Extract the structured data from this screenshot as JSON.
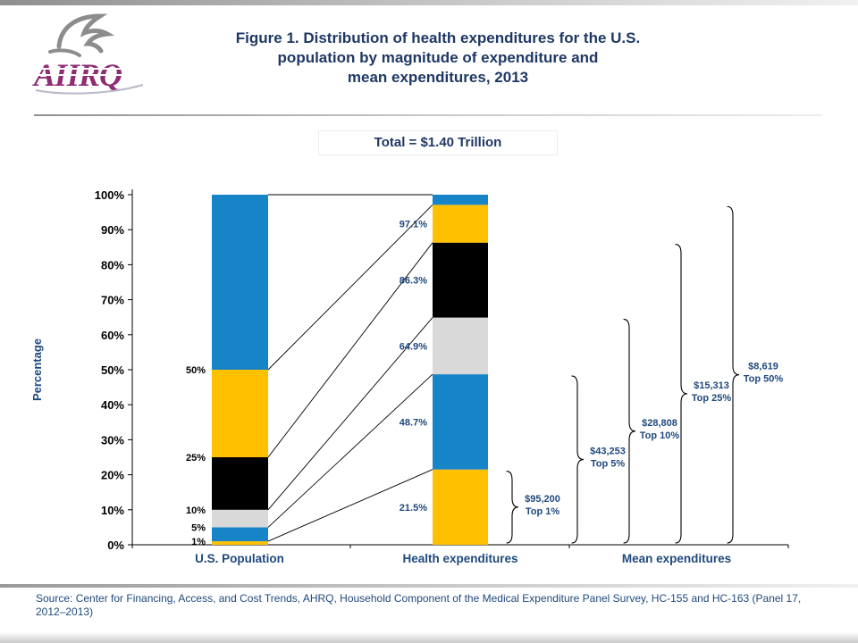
{
  "header": {
    "logo_text": "AHRQ",
    "title_lines": [
      "Figure 1. Distribution of health expenditures for the U.S.",
      "population by magnitude of expenditure and",
      "mean expenditures, 2013"
    ],
    "total_label": "Total = $1.40 Trillion"
  },
  "footer": {
    "source": "Source: Center for Financing, Access, and Cost Trends, AHRQ, Household Component of the Medical Expenditure Panel Survey, HC-155 and HC-163 (Panel 17, 2012–2013)"
  },
  "colors": {
    "navy_title": "#1F3864",
    "navy_label": "#1F497D",
    "logo_purple": "#8E2C74",
    "logo_gray": "#8c8c8c"
  },
  "chart_data": {
    "type": "bar",
    "subtype": "stacked-100pct-distribution-with-mean-brackets",
    "title": "Distribution of health expenditures for the U.S. population by magnitude of expenditure and mean expenditures, 2013",
    "total": "Total = $1.40 Trillion",
    "ylabel": "Percentage",
    "ylim": [
      0,
      100
    ],
    "grid": false,
    "y_ticks": [
      "0%",
      "10%",
      "20%",
      "30%",
      "40%",
      "50%",
      "60%",
      "70%",
      "80%",
      "90%",
      "100%"
    ],
    "x_categories": [
      "U.S. Population",
      "Health expenditures",
      "Mean expenditures"
    ],
    "colors": {
      "gold": "#FFC000",
      "blue": "#1784C8",
      "gray": "#D9D9D9",
      "black": "#000000"
    },
    "population_segments": [
      {
        "from": 0,
        "to": 1,
        "color": "gold"
      },
      {
        "from": 1,
        "to": 5,
        "color": "blue"
      },
      {
        "from": 5,
        "to": 10,
        "color": "gray"
      },
      {
        "from": 10,
        "to": 25,
        "color": "black"
      },
      {
        "from": 25,
        "to": 50,
        "color": "gold"
      },
      {
        "from": 50,
        "to": 100,
        "color": "blue"
      }
    ],
    "population_labels": [
      {
        "text": "50%",
        "at": 50
      },
      {
        "text": "25%",
        "at": 25
      },
      {
        "text": "10%",
        "at": 10
      },
      {
        "text": "5%",
        "at": 5
      },
      {
        "text": "1%",
        "at": 1
      }
    ],
    "expenditure_segments": [
      {
        "from": 0,
        "to": 21.5,
        "color": "gold",
        "label": "21.5%"
      },
      {
        "from": 21.5,
        "to": 48.7,
        "color": "blue",
        "label": "48.7%"
      },
      {
        "from": 48.7,
        "to": 64.9,
        "color": "gray",
        "label": "64.9%"
      },
      {
        "from": 64.9,
        "to": 86.3,
        "color": "black",
        "label": "86.3%"
      },
      {
        "from": 86.3,
        "to": 97.1,
        "color": "gold",
        "label": "97.1%"
      },
      {
        "from": 97.1,
        "to": 100,
        "color": "blue",
        "label": ""
      }
    ],
    "connectors": [
      {
        "pop": 100,
        "exp": 100
      },
      {
        "pop": 50,
        "exp": 97.1
      },
      {
        "pop": 25,
        "exp": 86.3
      },
      {
        "pop": 10,
        "exp": 64.9
      },
      {
        "pop": 5,
        "exp": 48.7
      },
      {
        "pop": 1,
        "exp": 21.5
      }
    ],
    "mean_expenditures": [
      {
        "value": "$95,200",
        "group": "Top 1%",
        "span": 21.5
      },
      {
        "value": "$43,253",
        "group": "Top 5%",
        "span": 48.7
      },
      {
        "value": "$28,808",
        "group": "Top 10%",
        "span": 64.9
      },
      {
        "value": "$15,313",
        "group": "Top 25%",
        "span": 86.3
      },
      {
        "value": "$8,619",
        "group": "Top 50%",
        "span": 97.1
      }
    ]
  }
}
